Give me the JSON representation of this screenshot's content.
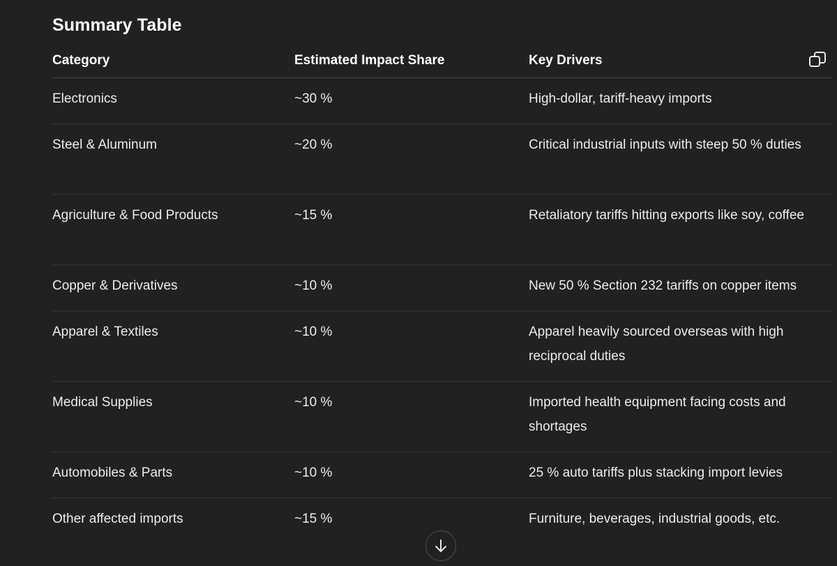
{
  "heading": "Summary Table",
  "table": {
    "headers": [
      "Category",
      "Estimated Impact Share",
      "Key Drivers"
    ],
    "rows": [
      {
        "category": "Electronics",
        "share": "~30 %",
        "drivers": "High-dollar, tariff-heavy imports"
      },
      {
        "category": "Steel & Aluminum",
        "share": "~20 %",
        "drivers": "Critical industrial inputs with steep 50 % duties"
      },
      {
        "category": "Agriculture & Food Products",
        "share": "~15 %",
        "drivers": "Retaliatory tariffs hitting exports like soy, coffee"
      },
      {
        "category": "Copper & Derivatives",
        "share": "~10 %",
        "drivers": "New 50 % Section 232 tariffs on copper items"
      },
      {
        "category": "Apparel & Textiles",
        "share": "~10 %",
        "drivers": "Apparel heavily sourced overseas with high reciprocal duties"
      },
      {
        "category": "Medical Supplies",
        "share": "~10 %",
        "drivers": "Imported health equipment facing costs and shortages"
      },
      {
        "category": "Automobiles & Parts",
        "share": "~10 %",
        "drivers": "25 % auto tariffs plus stacking import levies"
      },
      {
        "category": "Other affected imports",
        "share": "~15 %",
        "drivers": "Furniture, beverages, industrial goods, etc."
      }
    ]
  },
  "icons": {
    "copy": "copy-icon",
    "scroll_down": "arrow-down-icon"
  },
  "colors": {
    "background": "#212121",
    "text": "#ececec",
    "header_rule": "#4a4a4a",
    "row_rule": "#353535"
  }
}
